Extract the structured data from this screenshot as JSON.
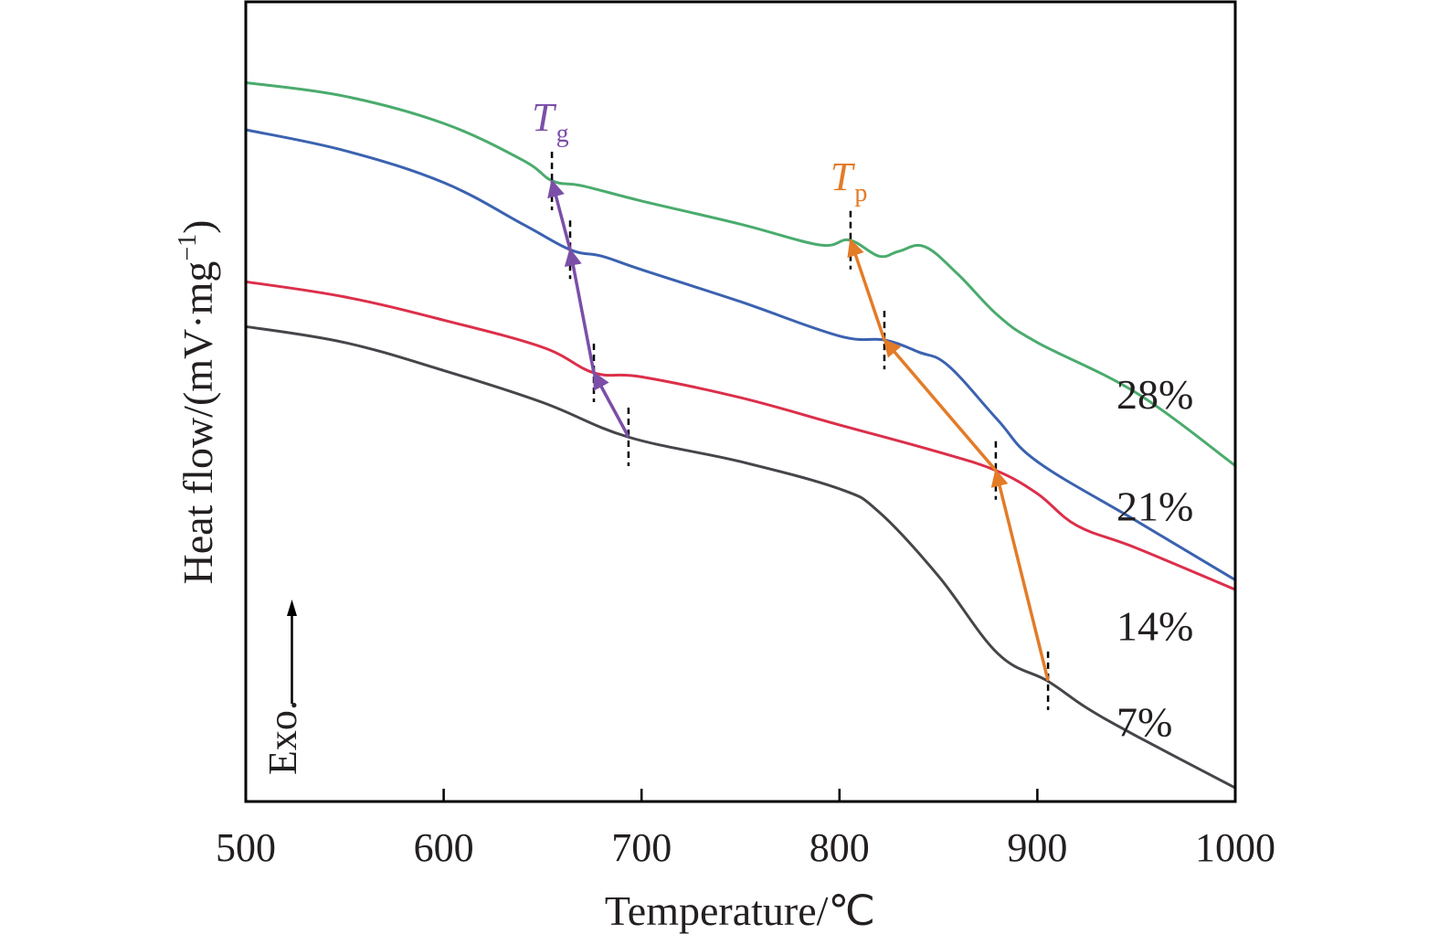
{
  "chart_data": {
    "type": "line",
    "title": "",
    "xlabel": "Temperature/℃",
    "ylabel": "Heat flow/(mV·mg⁻¹)",
    "ylabel_parts": {
      "main": "Heat flow/(mV·mg",
      "sup": "−1",
      "close": ")"
    },
    "xlim": [
      500,
      1000
    ],
    "ylim": [
      0,
      100
    ],
    "y_units_note": "arbitrary (no y ticks shown)",
    "xticks": [
      500,
      600,
      700,
      800,
      900,
      1000
    ],
    "xtick_labels": [
      "500",
      "600",
      "700",
      "800",
      "900",
      "1000"
    ],
    "grid": false,
    "legend": "inline labels at right",
    "exo_label": "Exo.",
    "series": [
      {
        "name": "28%",
        "color": "#4aab6d",
        "x": [
          500,
          550,
          600,
          640,
          655,
          670,
          700,
          750,
          790,
          805,
          820,
          830,
          843,
          860,
          880,
          900,
          950,
          1000
        ],
        "y": [
          89.9,
          88.2,
          84.8,
          80.2,
          77.6,
          77.0,
          75.1,
          72.2,
          69.6,
          70.2,
          68.2,
          68.8,
          69.4,
          65.9,
          60.8,
          57.4,
          51.1,
          42.0
        ],
        "label_y": 51
      },
      {
        "name": "21%",
        "color": "#3b62b0",
        "x": [
          500,
          550,
          600,
          640,
          664,
          680,
          700,
          750,
          800,
          823,
          840,
          855,
          880,
          900,
          950,
          1000
        ],
        "y": [
          84.0,
          81.4,
          77.4,
          72.2,
          69.0,
          68.2,
          66.5,
          62.5,
          58.2,
          57.7,
          56.2,
          54.5,
          47.7,
          42.5,
          35.1,
          27.7
        ],
        "label_y": 37
      },
      {
        "name": "14%",
        "color": "#dc2f4a",
        "x": [
          500,
          550,
          600,
          650,
          676,
          700,
          750,
          800,
          850,
          879,
          900,
          920,
          950,
          1000
        ],
        "y": [
          65.0,
          63.1,
          60.2,
          56.8,
          53.6,
          53.1,
          50.5,
          47.1,
          43.7,
          41.4,
          38.5,
          34.5,
          31.7,
          26.5
        ],
        "label_y": 22
      },
      {
        "name": "7%",
        "color": "#45454a",
        "x": [
          500,
          550,
          600,
          650,
          693,
          750,
          800,
          820,
          850,
          880,
          905,
          925,
          950,
          1000
        ],
        "y": [
          59.4,
          57.4,
          53.9,
          49.9,
          45.6,
          42.5,
          39.1,
          36.2,
          28.2,
          18.5,
          15.1,
          11.7,
          8.2,
          1.7
        ],
        "label_y": 10
      }
    ],
    "annotations": [
      {
        "name": "Tg",
        "label": "T",
        "sub": "g",
        "color": "#7b4fa8",
        "points": [
          {
            "series": "7%",
            "x": 693.4,
            "y": 45.6
          },
          {
            "series": "14%",
            "x": 675.9,
            "y": 53.6
          },
          {
            "series": "21%",
            "x": 663.9,
            "y": 69.0
          },
          {
            "series": "28%",
            "x": 654.7,
            "y": 77.6
          }
        ]
      },
      {
        "name": "Tp",
        "label": "T",
        "sub": "p",
        "color": "#e37b27",
        "points": [
          {
            "series": "7%",
            "x": 905.4,
            "y": 15.1
          },
          {
            "series": "14%",
            "x": 879.0,
            "y": 41.4
          },
          {
            "series": "21%",
            "x": 822.7,
            "y": 57.7
          },
          {
            "series": "28%",
            "x": 805.6,
            "y": 70.2
          }
        ]
      }
    ]
  }
}
